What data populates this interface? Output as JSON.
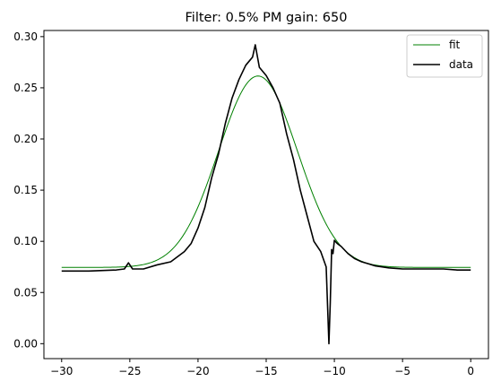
{
  "chart_data": {
    "type": "line",
    "title": "Filter: 0.5% PM gain: 650",
    "xlabel": "",
    "ylabel": "",
    "xlim": [
      -31.3,
      1.3
    ],
    "ylim": [
      -0.0146,
      0.306
    ],
    "x_ticks": [
      -30,
      -25,
      -20,
      -15,
      -10,
      -5,
      0
    ],
    "x_tick_labels": [
      "−30",
      "−25",
      "−20",
      "−15",
      "−10",
      "−5",
      "0"
    ],
    "y_ticks": [
      0.0,
      0.05,
      0.1,
      0.15,
      0.2,
      0.25,
      0.3
    ],
    "y_tick_labels": [
      "0.00",
      "0.05",
      "0.10",
      "0.15",
      "0.20",
      "0.25",
      "0.30"
    ],
    "grid": false,
    "legend_position": "top-right",
    "series": [
      {
        "name": "fit",
        "color": "#008000",
        "model": "gaussian",
        "amplitude": 0.187,
        "center": -15.6,
        "sigma": 2.9,
        "offset": 0.0745,
        "x_range": [
          -30,
          0
        ]
      },
      {
        "name": "data",
        "color": "#000000",
        "x": [
          -30,
          -28,
          -26,
          -25.4,
          -25.1,
          -24.8,
          -24,
          -23,
          -22,
          -21,
          -20.5,
          -20,
          -19.5,
          -19,
          -18.5,
          -18,
          -17.5,
          -17,
          -16.5,
          -16,
          -15.8,
          -15.5,
          -15,
          -14.5,
          -14,
          -13.5,
          -13,
          -12.5,
          -12,
          -11.5,
          -11,
          -10.6,
          -10.4,
          -10.3,
          -10.2,
          -10.1,
          -10.0,
          -9.8,
          -9.5,
          -9,
          -8.5,
          -8,
          -7.5,
          -7,
          -6,
          -5,
          -4,
          -3,
          -2,
          -1,
          0
        ],
        "y": [
          0.071,
          0.071,
          0.072,
          0.073,
          0.079,
          0.073,
          0.073,
          0.077,
          0.08,
          0.09,
          0.098,
          0.113,
          0.133,
          0.162,
          0.185,
          0.215,
          0.24,
          0.258,
          0.272,
          0.28,
          0.292,
          0.27,
          0.262,
          0.25,
          0.235,
          0.205,
          0.18,
          0.15,
          0.125,
          0.1,
          0.09,
          0.075,
          0.0,
          0.04,
          0.092,
          0.088,
          0.101,
          0.098,
          0.095,
          0.088,
          0.083,
          0.08,
          0.078,
          0.076,
          0.074,
          0.073,
          0.073,
          0.073,
          0.073,
          0.072,
          0.072
        ]
      }
    ]
  }
}
